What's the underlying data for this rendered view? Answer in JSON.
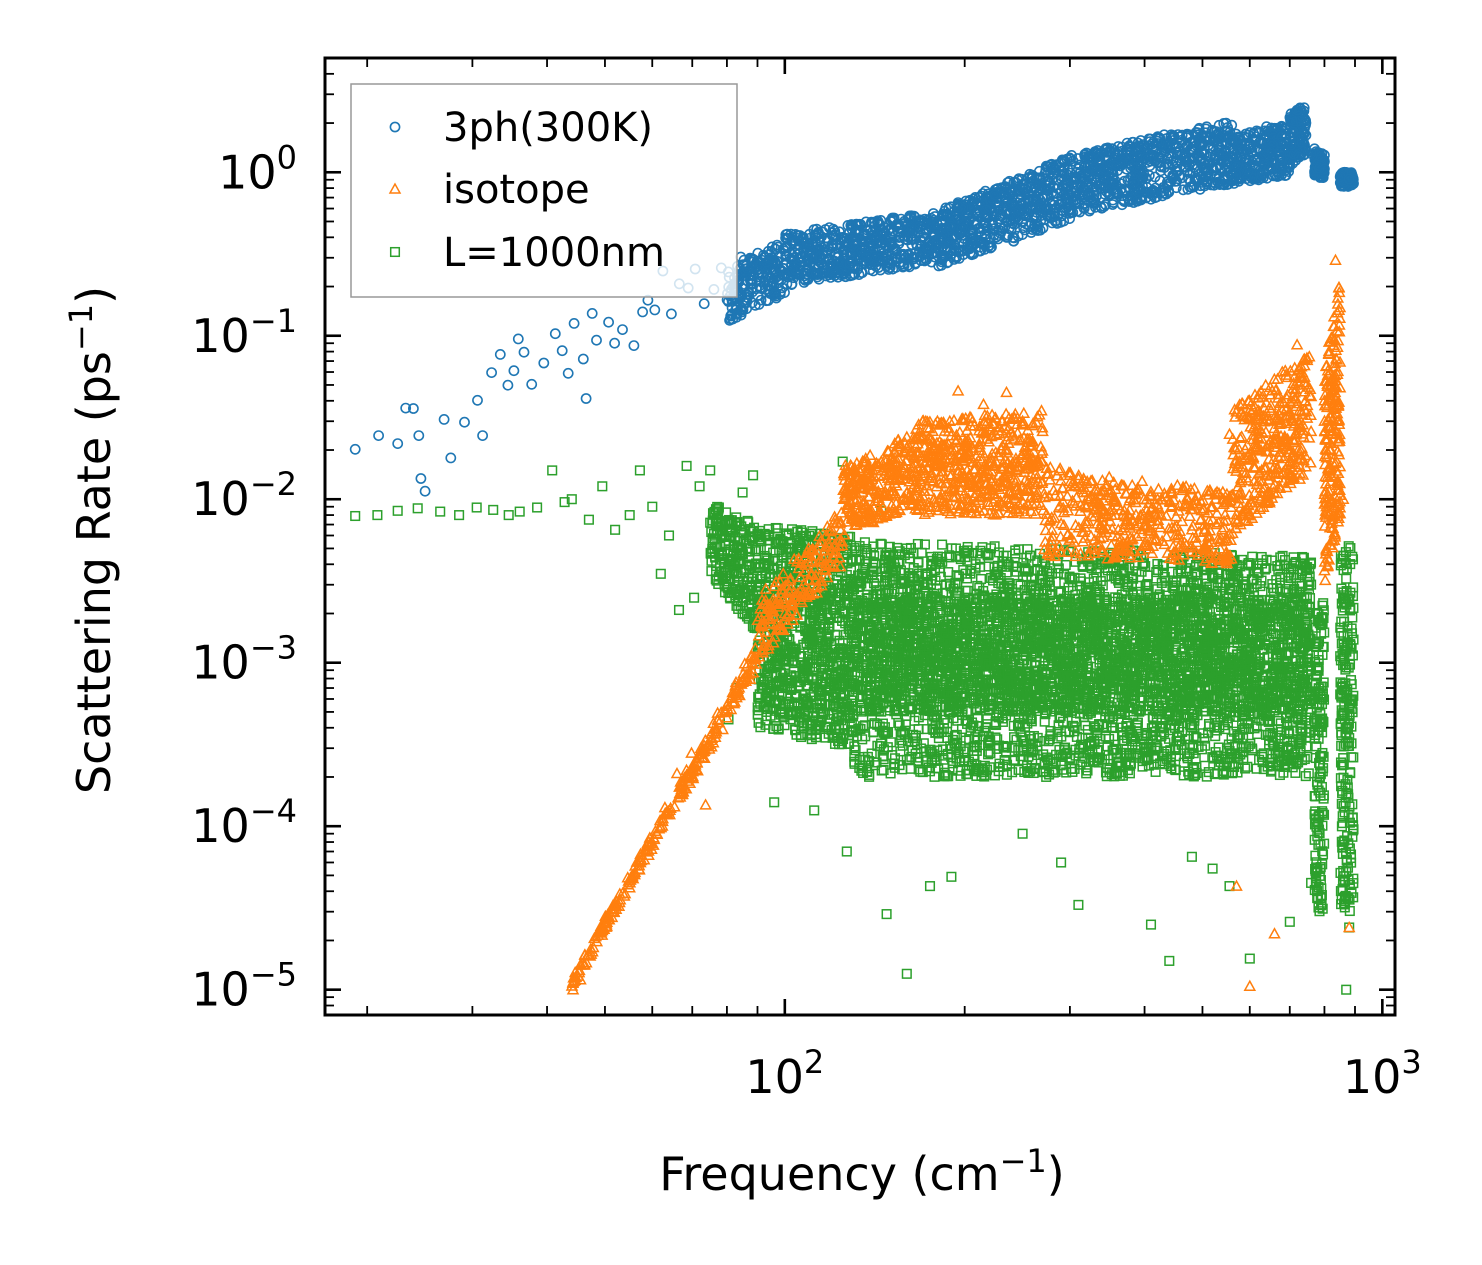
{
  "chart_data": {
    "type": "scatter",
    "title": "",
    "xlabel": {
      "base": "Frequency (cm",
      "sup": "−1",
      "close": ")"
    },
    "ylabel": {
      "base": "Scattering Rate (ps",
      "sup": "−1",
      "close": ")"
    },
    "xscale": "log",
    "yscale": "log",
    "xlim": [
      17,
      1050
    ],
    "ylim": [
      7e-06,
      5
    ],
    "grid": false,
    "legend_position": "top-left",
    "x_ticks": [
      {
        "value": 100,
        "base": "10",
        "exp": "2"
      },
      {
        "value": 1000,
        "base": "10",
        "exp": "3"
      }
    ],
    "y_ticks": [
      {
        "value": 1,
        "base": "10",
        "exp": "0"
      },
      {
        "value": 0.1,
        "base": "10",
        "exp": "−1"
      },
      {
        "value": 0.01,
        "base": "10",
        "exp": "−2"
      },
      {
        "value": 0.001,
        "base": "10",
        "exp": "−3"
      },
      {
        "value": 0.0001,
        "base": "10",
        "exp": "−4"
      },
      {
        "value": 1e-05,
        "base": "10",
        "exp": "−5"
      }
    ],
    "series": [
      {
        "name": "3ph(300K)",
        "marker": "circle",
        "color": "#1f77b4",
        "points": [
          [
            19.1,
            0.0202
          ],
          [
            20.9,
            0.0245
          ],
          [
            22.5,
            0.0219
          ],
          [
            23.2,
            0.0361
          ],
          [
            23.9,
            0.0359
          ],
          [
            24.4,
            0.0245
          ],
          [
            24.6,
            0.0134
          ],
          [
            25.0,
            0.0112
          ],
          [
            26.9,
            0.0308
          ],
          [
            27.6,
            0.0179
          ],
          [
            29.1,
            0.0296
          ],
          [
            30.6,
            0.0403
          ],
          [
            31.2,
            0.0245
          ],
          [
            32.3,
            0.0595
          ],
          [
            33.4,
            0.0769
          ],
          [
            34.4,
            0.0498
          ],
          [
            35.2,
            0.0611
          ],
          [
            35.8,
            0.0957
          ],
          [
            36.6,
            0.0793
          ],
          [
            37.7,
            0.0505
          ],
          [
            39.5,
            0.0681
          ],
          [
            41.3,
            0.103
          ],
          [
            42.4,
            0.081
          ],
          [
            43.4,
            0.0589
          ],
          [
            44.4,
            0.119
          ],
          [
            46.0,
            0.0721
          ],
          [
            46.5,
            0.0413
          ],
          [
            47.6,
            0.137
          ],
          [
            48.4,
            0.0939
          ],
          [
            50.7,
            0.121
          ],
          [
            51.9,
            0.09
          ],
          [
            53.5,
            0.109
          ],
          [
            55.9,
            0.087
          ],
          [
            57.8,
            0.14
          ],
          [
            59.0,
            0.165
          ],
          [
            60.6,
            0.144
          ],
          [
            62.5,
            0.249
          ],
          [
            64.6,
            0.136
          ],
          [
            66.6,
            0.208
          ],
          [
            68.9,
            0.196
          ],
          [
            70.8,
            0.256
          ],
          [
            73.3,
            0.157
          ],
          [
            76.1,
            0.192
          ],
          [
            78.3,
            0.26
          ],
          [
            80.7,
            0.228
          ],
          [
            84.4,
            0.303
          ],
          [
            86.5,
            0.258
          ],
          [
            90.1,
            0.32
          ],
          [
            95.0,
            0.3
          ],
          [
            100,
            0.33
          ],
          [
            105,
            0.34
          ],
          [
            110,
            0.35
          ],
          [
            118,
            0.33
          ],
          [
            126,
            0.38
          ],
          [
            135,
            0.38
          ],
          [
            145,
            0.42
          ],
          [
            155,
            0.43
          ],
          [
            168,
            0.49
          ],
          [
            180,
            0.48
          ],
          [
            195,
            0.52
          ],
          [
            210,
            0.56
          ],
          [
            225,
            0.58
          ],
          [
            240,
            0.66
          ],
          [
            255,
            0.74
          ],
          [
            270,
            0.82
          ],
          [
            290,
            0.95
          ],
          [
            310,
            1.05
          ],
          [
            335,
            1.2
          ],
          [
            360,
            1.3
          ],
          [
            390,
            1.45
          ],
          [
            420,
            1.55
          ],
          [
            455,
            1.7
          ],
          [
            490,
            1.75
          ],
          [
            520,
            1.45
          ],
          [
            560,
            1.6
          ],
          [
            600,
            1.75
          ],
          [
            640,
            1.9
          ],
          [
            680,
            1.65
          ],
          [
            720,
            2.4
          ],
          [
            760,
            1.3
          ],
          [
            800,
            1.05
          ],
          [
            850,
            0.94
          ],
          [
            880,
            0.91
          ]
        ],
        "bands": [
          {
            "x0": 80,
            "x1": 100,
            "lo0": 0.12,
            "hi0": 0.26,
            "lo1": 0.18,
            "hi1": 0.38,
            "n": 200
          },
          {
            "x0": 100,
            "x1": 180,
            "lo0": 0.2,
            "hi0": 0.42,
            "lo1": 0.28,
            "hi1": 0.58,
            "n": 550
          },
          {
            "x0": 180,
            "x1": 300,
            "lo0": 0.26,
            "hi0": 0.58,
            "lo1": 0.5,
            "hi1": 1.25,
            "n": 550
          },
          {
            "x0": 300,
            "x1": 560,
            "lo0": 0.55,
            "hi0": 1.3,
            "lo1": 0.85,
            "hi1": 2.05,
            "n": 650
          },
          {
            "x0": 560,
            "x1": 700,
            "lo0": 0.85,
            "hi0": 1.7,
            "lo1": 0.95,
            "hi1": 1.95,
            "n": 260
          },
          {
            "x0": 700,
            "x1": 745,
            "lo0": 1.1,
            "hi0": 2.3,
            "lo1": 1.3,
            "hi1": 2.6,
            "n": 120
          },
          {
            "x0": 770,
            "x1": 800,
            "lo0": 0.95,
            "hi0": 1.4,
            "lo1": 0.9,
            "hi1": 1.3,
            "n": 100
          },
          {
            "x0": 850,
            "x1": 895,
            "lo0": 0.82,
            "hi0": 1.0,
            "lo1": 0.82,
            "hi1": 1.0,
            "n": 100
          }
        ]
      },
      {
        "name": "isotope",
        "marker": "triangle",
        "color": "#ff7f0e",
        "points": [
          [
            44.2,
            1e-05
          ],
          [
            45.5,
            1.15e-05
          ],
          [
            47.4,
            1.65e-05
          ],
          [
            49.5,
            2.3e-05
          ],
          [
            52.2,
            3.1e-05
          ],
          [
            55.0,
            4.2e-05
          ],
          [
            57.1,
            5.4e-05
          ],
          [
            60.3,
            8.5e-05
          ],
          [
            63.0,
            0.00013
          ],
          [
            66.0,
            0.00021
          ],
          [
            69.8,
            0.00028
          ],
          [
            73.7,
            0.000135
          ],
          [
            76.5,
            0.00035
          ],
          [
            80.0,
            0.00046
          ],
          [
            84.0,
            0.00063
          ],
          [
            88.5,
            0.00087
          ],
          [
            92.0,
            0.0012
          ],
          [
            100,
            0.002
          ],
          [
            110,
            0.0032
          ],
          [
            120,
            0.006
          ],
          [
            130,
            0.011
          ],
          [
            145,
            0.017
          ],
          [
            160,
            0.024
          ],
          [
            180,
            0.03
          ],
          [
            195,
            0.046
          ],
          [
            215,
            0.038
          ],
          [
            235,
            0.045
          ],
          [
            250,
            0.03
          ],
          [
            270,
            0.026
          ],
          [
            300,
            0.014
          ],
          [
            330,
            0.0096
          ],
          [
            370,
            0.0085
          ],
          [
            420,
            0.0093
          ],
          [
            480,
            0.0065
          ],
          [
            520,
            0.0075
          ],
          [
            555,
            0.025
          ],
          [
            600,
            0.035
          ],
          [
            640,
            0.021
          ],
          [
            680,
            0.06
          ],
          [
            720,
            0.088
          ],
          [
            760,
            0.026
          ],
          [
            800,
            0.04
          ],
          [
            835,
            0.29
          ],
          [
            860,
            0.01
          ],
          [
            880,
            2.4e-05
          ],
          [
            600,
            1.05e-05
          ],
          [
            660,
            2.2e-05
          ],
          [
            570,
            4.3e-05
          ]
        ],
        "bands": [
          {
            "x0": 44,
            "x1": 90,
            "lo0": 1e-05,
            "hi0": 1.2e-05,
            "lo1": 0.0009,
            "hi1": 0.0014,
            "n": 260,
            "corr": true
          },
          {
            "x0": 90,
            "x1": 125,
            "lo0": 0.001,
            "hi0": 0.0025,
            "lo1": 0.004,
            "hi1": 0.009,
            "n": 180
          },
          {
            "x0": 125,
            "x1": 165,
            "lo0": 0.006,
            "hi0": 0.016,
            "lo1": 0.009,
            "hi1": 0.026,
            "n": 280
          },
          {
            "x0": 165,
            "x1": 270,
            "lo0": 0.008,
            "hi0": 0.03,
            "lo1": 0.008,
            "hi1": 0.035,
            "n": 550
          },
          {
            "x0": 270,
            "x1": 560,
            "lo0": 0.0045,
            "hi0": 0.016,
            "lo1": 0.004,
            "hi1": 0.011,
            "n": 450
          },
          {
            "x0": 560,
            "x1": 760,
            "lo0": 0.006,
            "hi0": 0.035,
            "lo1": 0.015,
            "hi1": 0.08,
            "n": 360
          },
          {
            "x0": 800,
            "x1": 850,
            "lo0": 0.003,
            "hi0": 0.06,
            "lo1": 0.008,
            "hi1": 0.25,
            "n": 220
          }
        ]
      },
      {
        "name": "L=1000nm",
        "marker": "square",
        "color": "#2ca02c",
        "points": [
          [
            19.1,
            0.0079
          ],
          [
            20.8,
            0.008
          ],
          [
            22.5,
            0.0085
          ],
          [
            24.3,
            0.0088
          ],
          [
            26.5,
            0.0084
          ],
          [
            28.5,
            0.008
          ],
          [
            30.5,
            0.0089
          ],
          [
            32.5,
            0.0086
          ],
          [
            34.5,
            0.008
          ],
          [
            36.0,
            0.0084
          ],
          [
            38.5,
            0.0089
          ],
          [
            40.8,
            0.015
          ],
          [
            42.8,
            0.0096
          ],
          [
            44.0,
            0.01
          ],
          [
            47.0,
            0.0075
          ],
          [
            49.5,
            0.012
          ],
          [
            52.0,
            0.0065
          ],
          [
            55.0,
            0.008
          ],
          [
            57.2,
            0.015
          ],
          [
            60.0,
            0.009
          ],
          [
            62.0,
            0.0035
          ],
          [
            64.0,
            0.006
          ],
          [
            66.5,
            0.0021
          ],
          [
            68.5,
            0.016
          ],
          [
            70.5,
            0.0025
          ],
          [
            72.0,
            0.012
          ],
          [
            75.0,
            0.015
          ],
          [
            78.0,
            0.0065
          ],
          [
            80.5,
            0.00045
          ],
          [
            83.0,
            0.0007
          ],
          [
            85.0,
            0.011
          ],
          [
            88.5,
            0.014
          ],
          [
            96.0,
            0.00014
          ],
          [
            112.0,
            0.000125
          ],
          [
            127.0,
            7e-05
          ],
          [
            148.0,
            2.9e-05
          ],
          [
            160.0,
            1.25e-05
          ],
          [
            175.0,
            4.3e-05
          ],
          [
            190.0,
            4.9e-05
          ],
          [
            250.0,
            9e-05
          ],
          [
            290.0,
            6e-05
          ],
          [
            310.0,
            3.3e-05
          ],
          [
            410.0,
            2.5e-05
          ],
          [
            440.0,
            1.5e-05
          ],
          [
            480.0,
            6.5e-05
          ],
          [
            520.0,
            5.5e-05
          ],
          [
            555.0,
            4.3e-05
          ],
          [
            600.0,
            1.55e-05
          ],
          [
            700.0,
            2.6e-05
          ],
          [
            760.0,
            4.5e-05
          ],
          [
            870.0,
            1e-05
          ],
          [
            880.0,
            2.4e-05
          ],
          [
            125.0,
            0.017
          ],
          [
            145.0,
            0.0085
          ],
          [
            330.0,
            0.0048
          ],
          [
            460.0,
            0.0045
          ],
          [
            560.0,
            0.0045
          ],
          [
            720.0,
            0.0013
          ],
          [
            860.0,
            0.0045
          ]
        ],
        "bands": [
          {
            "x0": 75,
            "x1": 90,
            "lo0": 0.0035,
            "hi0": 0.0095,
            "lo1": 0.0015,
            "hi1": 0.007,
            "n": 220
          },
          {
            "x0": 90,
            "x1": 130,
            "lo0": 0.0004,
            "hi0": 0.007,
            "lo1": 0.0003,
            "hi1": 0.006,
            "n": 900
          },
          {
            "x0": 130,
            "x1": 760,
            "lo0": 0.0002,
            "hi0": 0.0055,
            "lo1": 0.0002,
            "hi1": 0.0045,
            "n": 3000
          },
          {
            "x0": 130,
            "x1": 760,
            "lo0": 0.0005,
            "hi0": 0.0025,
            "lo1": 0.0005,
            "hi1": 0.0025,
            "n": 2000
          },
          {
            "x0": 770,
            "x1": 800,
            "lo0": 3e-05,
            "hi0": 0.002,
            "lo1": 3e-05,
            "hi1": 0.0025,
            "n": 160
          },
          {
            "x0": 850,
            "x1": 895,
            "lo0": 3e-05,
            "hi0": 0.005,
            "lo1": 3e-05,
            "hi1": 0.0055,
            "n": 220
          }
        ]
      }
    ]
  }
}
